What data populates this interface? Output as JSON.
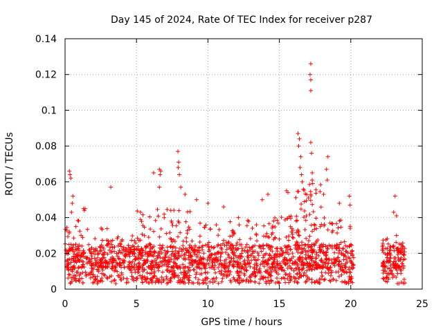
{
  "chart_data": {
    "type": "scatter",
    "title": "Day 145 of 2024, Rate Of TEC Index for receiver p287",
    "xlabel": "GPS time / hours",
    "ylabel": "ROTI / TECUs",
    "xlim": [
      0,
      25
    ],
    "ylim": [
      0,
      0.14
    ],
    "xticks": [
      "0",
      "5",
      "10",
      "15",
      "20",
      "25"
    ],
    "yticks": [
      "0",
      "0.02",
      "0.04",
      "0.06",
      "0.08",
      "0.1",
      "0.12",
      "0.14"
    ],
    "grid": true,
    "legend": "none",
    "marker": "plus",
    "color": "#ff0000",
    "bands": [
      {
        "x0": 0.0,
        "x1": 1.0,
        "peak": 0.04,
        "n": 70
      },
      {
        "x0": 1.0,
        "x1": 3.0,
        "peak": 0.035,
        "n": 110
      },
      {
        "x0": 3.0,
        "x1": 5.0,
        "peak": 0.03,
        "n": 100
      },
      {
        "x0": 5.0,
        "x1": 7.0,
        "peak": 0.045,
        "n": 130
      },
      {
        "x0": 7.0,
        "x1": 9.0,
        "peak": 0.045,
        "n": 120
      },
      {
        "x0": 9.0,
        "x1": 12.0,
        "peak": 0.038,
        "n": 150
      },
      {
        "x0": 12.0,
        "x1": 14.0,
        "peak": 0.04,
        "n": 110
      },
      {
        "x0": 14.0,
        "x1": 16.0,
        "peak": 0.042,
        "n": 120
      },
      {
        "x0": 16.0,
        "x1": 18.0,
        "peak": 0.06,
        "n": 150
      },
      {
        "x0": 18.0,
        "x1": 20.2,
        "peak": 0.04,
        "n": 120
      },
      {
        "x0": 22.2,
        "x1": 23.8,
        "peak": 0.03,
        "n": 100
      }
    ],
    "outliers": [
      {
        "x": 0.3,
        "y": 0.066
      },
      {
        "x": 0.35,
        "y": 0.064
      },
      {
        "x": 0.4,
        "y": 0.062
      },
      {
        "x": 0.55,
        "y": 0.052
      },
      {
        "x": 0.5,
        "y": 0.048
      },
      {
        "x": 0.45,
        "y": 0.043
      },
      {
        "x": 1.3,
        "y": 0.045
      },
      {
        "x": 1.35,
        "y": 0.044
      },
      {
        "x": 1.4,
        "y": 0.045
      },
      {
        "x": 3.2,
        "y": 0.057
      },
      {
        "x": 6.2,
        "y": 0.065
      },
      {
        "x": 6.6,
        "y": 0.067
      },
      {
        "x": 6.7,
        "y": 0.066
      },
      {
        "x": 6.65,
        "y": 0.064
      },
      {
        "x": 6.6,
        "y": 0.057
      },
      {
        "x": 7.9,
        "y": 0.077
      },
      {
        "x": 7.95,
        "y": 0.071
      },
      {
        "x": 7.92,
        "y": 0.068
      },
      {
        "x": 8.0,
        "y": 0.064
      },
      {
        "x": 8.1,
        "y": 0.057
      },
      {
        "x": 8.4,
        "y": 0.053
      },
      {
        "x": 9.2,
        "y": 0.05
      },
      {
        "x": 10.0,
        "y": 0.048
      },
      {
        "x": 11.1,
        "y": 0.046
      },
      {
        "x": 13.8,
        "y": 0.05
      },
      {
        "x": 14.2,
        "y": 0.053
      },
      {
        "x": 15.5,
        "y": 0.055
      },
      {
        "x": 15.6,
        "y": 0.054
      },
      {
        "x": 16.3,
        "y": 0.087
      },
      {
        "x": 16.4,
        "y": 0.084
      },
      {
        "x": 16.35,
        "y": 0.08
      },
      {
        "x": 16.5,
        "y": 0.074
      },
      {
        "x": 16.45,
        "y": 0.068
      },
      {
        "x": 16.55,
        "y": 0.064
      },
      {
        "x": 16.6,
        "y": 0.06
      },
      {
        "x": 17.2,
        "y": 0.126
      },
      {
        "x": 17.15,
        "y": 0.12
      },
      {
        "x": 17.2,
        "y": 0.117
      },
      {
        "x": 17.2,
        "y": 0.111
      },
      {
        "x": 17.2,
        "y": 0.082
      },
      {
        "x": 17.25,
        "y": 0.076
      },
      {
        "x": 17.3,
        "y": 0.065
      },
      {
        "x": 17.3,
        "y": 0.061
      },
      {
        "x": 18.4,
        "y": 0.074
      },
      {
        "x": 18.3,
        "y": 0.067
      },
      {
        "x": 18.35,
        "y": 0.061
      },
      {
        "x": 18.1,
        "y": 0.053
      },
      {
        "x": 19.2,
        "y": 0.048
      },
      {
        "x": 19.9,
        "y": 0.052
      },
      {
        "x": 19.95,
        "y": 0.047
      },
      {
        "x": 23.1,
        "y": 0.052
      },
      {
        "x": 23.0,
        "y": 0.043
      },
      {
        "x": 23.2,
        "y": 0.041
      }
    ]
  }
}
